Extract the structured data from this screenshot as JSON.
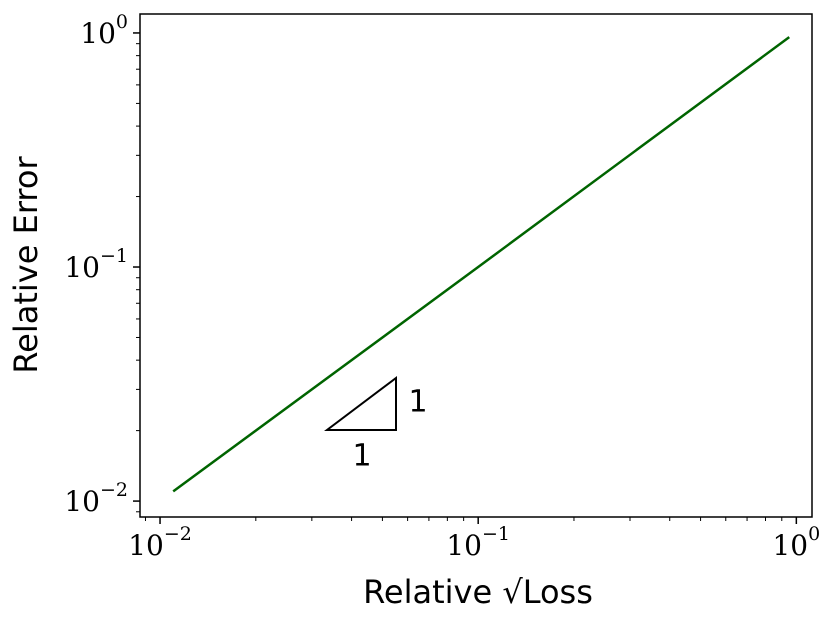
{
  "chart_data": {
    "type": "line",
    "log_x": true,
    "log_y": true,
    "xlabel": "Relative √Loss",
    "ylabel": "Relative Error",
    "x": [
      0.011,
      0.1,
      0.95
    ],
    "series": [
      {
        "color": "#006400",
        "values": [
          0.011,
          0.1,
          0.96
        ]
      }
    ],
    "xlim": [
      0.00865,
      1.12
    ],
    "ylim": [
      0.00855,
      1.205
    ],
    "xticks": [
      {
        "value": 0.01,
        "label": "10",
        "exponent": "−2"
      },
      {
        "value": 0.1,
        "label": "10",
        "exponent": "−1"
      },
      {
        "value": 1,
        "label": "10",
        "exponent": "0"
      }
    ],
    "yticks": [
      {
        "value": 0.01,
        "label": "10",
        "exponent": "−2"
      },
      {
        "value": 0.1,
        "label": "10",
        "exponent": "−1"
      },
      {
        "value": 1,
        "label": "10",
        "exponent": "0"
      }
    ],
    "annotations": [
      {
        "text": "1"
      },
      {
        "text": "1"
      }
    ]
  }
}
